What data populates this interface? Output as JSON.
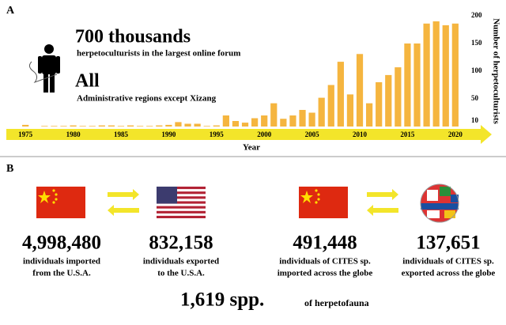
{
  "chart_data": {
    "type": "bar",
    "panel_label": "A",
    "annotations": [
      {
        "headline": "700 thousands",
        "text": "herpetoculturists in the largest online forum"
      },
      {
        "headline": "All",
        "text": "Administrative regions except Xizang"
      }
    ],
    "x_label": "Year",
    "y_label": "Number of herpetoculturists",
    "x": [
      1975,
      1976,
      1977,
      1978,
      1979,
      1980,
      1981,
      1982,
      1983,
      1984,
      1985,
      1986,
      1987,
      1988,
      1989,
      1990,
      1991,
      1992,
      1993,
      1994,
      1995,
      1996,
      1997,
      1998,
      1999,
      2000,
      2001,
      2002,
      2003,
      2004,
      2005,
      2006,
      2007,
      2008,
      2009,
      2010,
      2011,
      2012,
      2013,
      2014,
      2015,
      2016,
      2017,
      2018,
      2019,
      2020
    ],
    "values": [
      3,
      0,
      1,
      1,
      1,
      2,
      1,
      1,
      2,
      2,
      1,
      2,
      1,
      1,
      2,
      3,
      8,
      5,
      5,
      1,
      2,
      20,
      10,
      7,
      15,
      20,
      42,
      14,
      20,
      30,
      25,
      52,
      75,
      117,
      58,
      131,
      42,
      80,
      93,
      107,
      150,
      150,
      186,
      190,
      183,
      186
    ],
    "color": "#f5b53f",
    "axis_color": "#f3e52a",
    "xlim": [
      1973,
      2022
    ],
    "xticks": [
      1975,
      1980,
      1985,
      1990,
      1995,
      2000,
      2005,
      2010,
      2015,
      2020
    ],
    "ylim": [
      0,
      200
    ],
    "yticks": [
      10,
      50,
      100,
      150,
      200
    ],
    "y_axis_side": "right"
  },
  "panel_b": {
    "label": "B",
    "stats": [
      {
        "value": "4,998,480",
        "caption": [
          "individuals imported",
          "from the U.S.A."
        ]
      },
      {
        "value": "832,158",
        "caption": [
          "individuals exported",
          "to the U.S.A."
        ]
      },
      {
        "value": "491,448",
        "caption": [
          "individuals of CITES sp.",
          "imported across the globe"
        ]
      },
      {
        "value": "137,651",
        "caption": [
          "individuals of CITES sp.",
          "exported across the globe"
        ]
      }
    ],
    "species": {
      "value": "1,619 spp.",
      "caption": "of herpetofauna"
    }
  }
}
